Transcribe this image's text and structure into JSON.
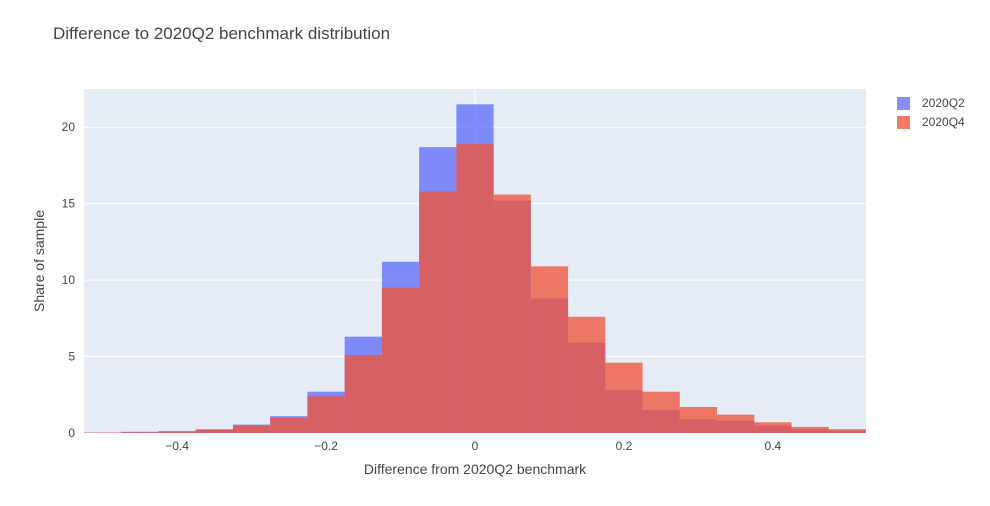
{
  "chart_data": {
    "type": "bar",
    "title": "Difference to 2020Q2 benchmark distribution",
    "xlabel": "Difference from 2020Q2 benchmark",
    "ylabel": "Share of sample",
    "xlim": [
      -0.525,
      0.525
    ],
    "ylim": [
      0,
      22.5
    ],
    "bin_width": 0.05,
    "x_ticks": [
      -0.4,
      -0.2,
      0,
      0.2,
      0.4
    ],
    "x_tick_labels": [
      "−0.4",
      "−0.2",
      "0",
      "0.2",
      "0.4"
    ],
    "y_ticks": [
      0,
      5,
      10,
      15,
      20
    ],
    "y_tick_labels": [
      "0",
      "5",
      "10",
      "15",
      "20"
    ],
    "bin_starts": [
      -0.525,
      -0.475,
      -0.425,
      -0.375,
      -0.325,
      -0.275,
      -0.225,
      -0.175,
      -0.125,
      -0.075,
      -0.025,
      0.025,
      0.075,
      0.125,
      0.175,
      0.225,
      0.275,
      0.325,
      0.375,
      0.425,
      0.475
    ],
    "series": [
      {
        "name": "2020Q2",
        "color": "#636efa",
        "values": [
          0.02,
          0.08,
          0.12,
          0.2,
          0.55,
          1.1,
          2.7,
          6.3,
          11.2,
          18.7,
          21.5,
          15.2,
          8.8,
          5.9,
          2.8,
          1.5,
          0.9,
          0.8,
          0.5,
          0.25,
          0.15
        ]
      },
      {
        "name": "2020Q4",
        "color": "#ef553b",
        "values": [
          0.03,
          0.05,
          0.1,
          0.25,
          0.5,
          1.0,
          2.4,
          5.1,
          9.5,
          15.8,
          18.9,
          15.6,
          10.9,
          7.6,
          4.6,
          2.7,
          1.7,
          1.2,
          0.7,
          0.4,
          0.25
        ]
      }
    ],
    "legend_position": "top-right"
  }
}
